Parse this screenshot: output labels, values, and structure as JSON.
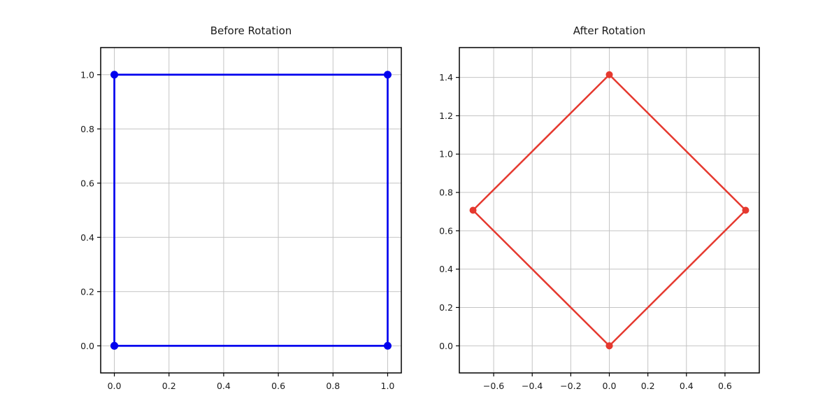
{
  "figure": {
    "background": "#ffffff",
    "grid_color": "#c4c4c4",
    "axis_color": "#000000",
    "text_color": "#1a1a1a"
  },
  "chart_data": [
    {
      "type": "line",
      "title": "Before Rotation",
      "xlabel": "",
      "ylabel": "",
      "grid": true,
      "legend": null,
      "xlim": [
        -0.05,
        1.05
      ],
      "ylim": [
        -0.1,
        1.1
      ],
      "xticks": [
        0.0,
        0.2,
        0.4,
        0.6,
        0.8,
        1.0
      ],
      "yticks": [
        0.0,
        0.2,
        0.4,
        0.6,
        0.8,
        1.0
      ],
      "xtick_labels": [
        "0.0",
        "0.2",
        "0.4",
        "0.6",
        "0.8",
        "1.0"
      ],
      "ytick_labels": [
        "0.0",
        "0.2",
        "0.4",
        "0.6",
        "0.8",
        "1.0"
      ],
      "series": [
        {
          "color": "#0000ee",
          "line_width": 2.7,
          "marker": "circle",
          "marker_size": 5.5,
          "x": [
            0.0,
            1.0,
            1.0,
            0.0,
            0.0
          ],
          "y": [
            0.0,
            0.0,
            1.0,
            1.0,
            0.0
          ]
        }
      ]
    },
    {
      "type": "line",
      "title": "After Rotation",
      "xlabel": "",
      "ylabel": "",
      "grid": true,
      "legend": null,
      "xlim": [
        -0.778,
        0.778
      ],
      "ylim": [
        -0.1414,
        1.5556
      ],
      "xticks": [
        -0.6,
        -0.4,
        -0.2,
        0.0,
        0.2,
        0.4,
        0.6
      ],
      "yticks": [
        0.0,
        0.2,
        0.4,
        0.6,
        0.8,
        1.0,
        1.2,
        1.4
      ],
      "xtick_labels": [
        "−0.6",
        "−0.4",
        "−0.2",
        "0.0",
        "0.2",
        "0.4",
        "0.6"
      ],
      "ytick_labels": [
        "0.0",
        "0.2",
        "0.4",
        "0.6",
        "0.8",
        "1.0",
        "1.2",
        "1.4"
      ],
      "series": [
        {
          "color": "#e5392f",
          "line_width": 2.5,
          "marker": "circle",
          "marker_size": 5,
          "x": [
            0.0,
            0.7071,
            0.0,
            -0.7071,
            0.0
          ],
          "y": [
            0.0,
            0.7071,
            1.4142,
            0.7071,
            0.0
          ]
        }
      ]
    }
  ]
}
